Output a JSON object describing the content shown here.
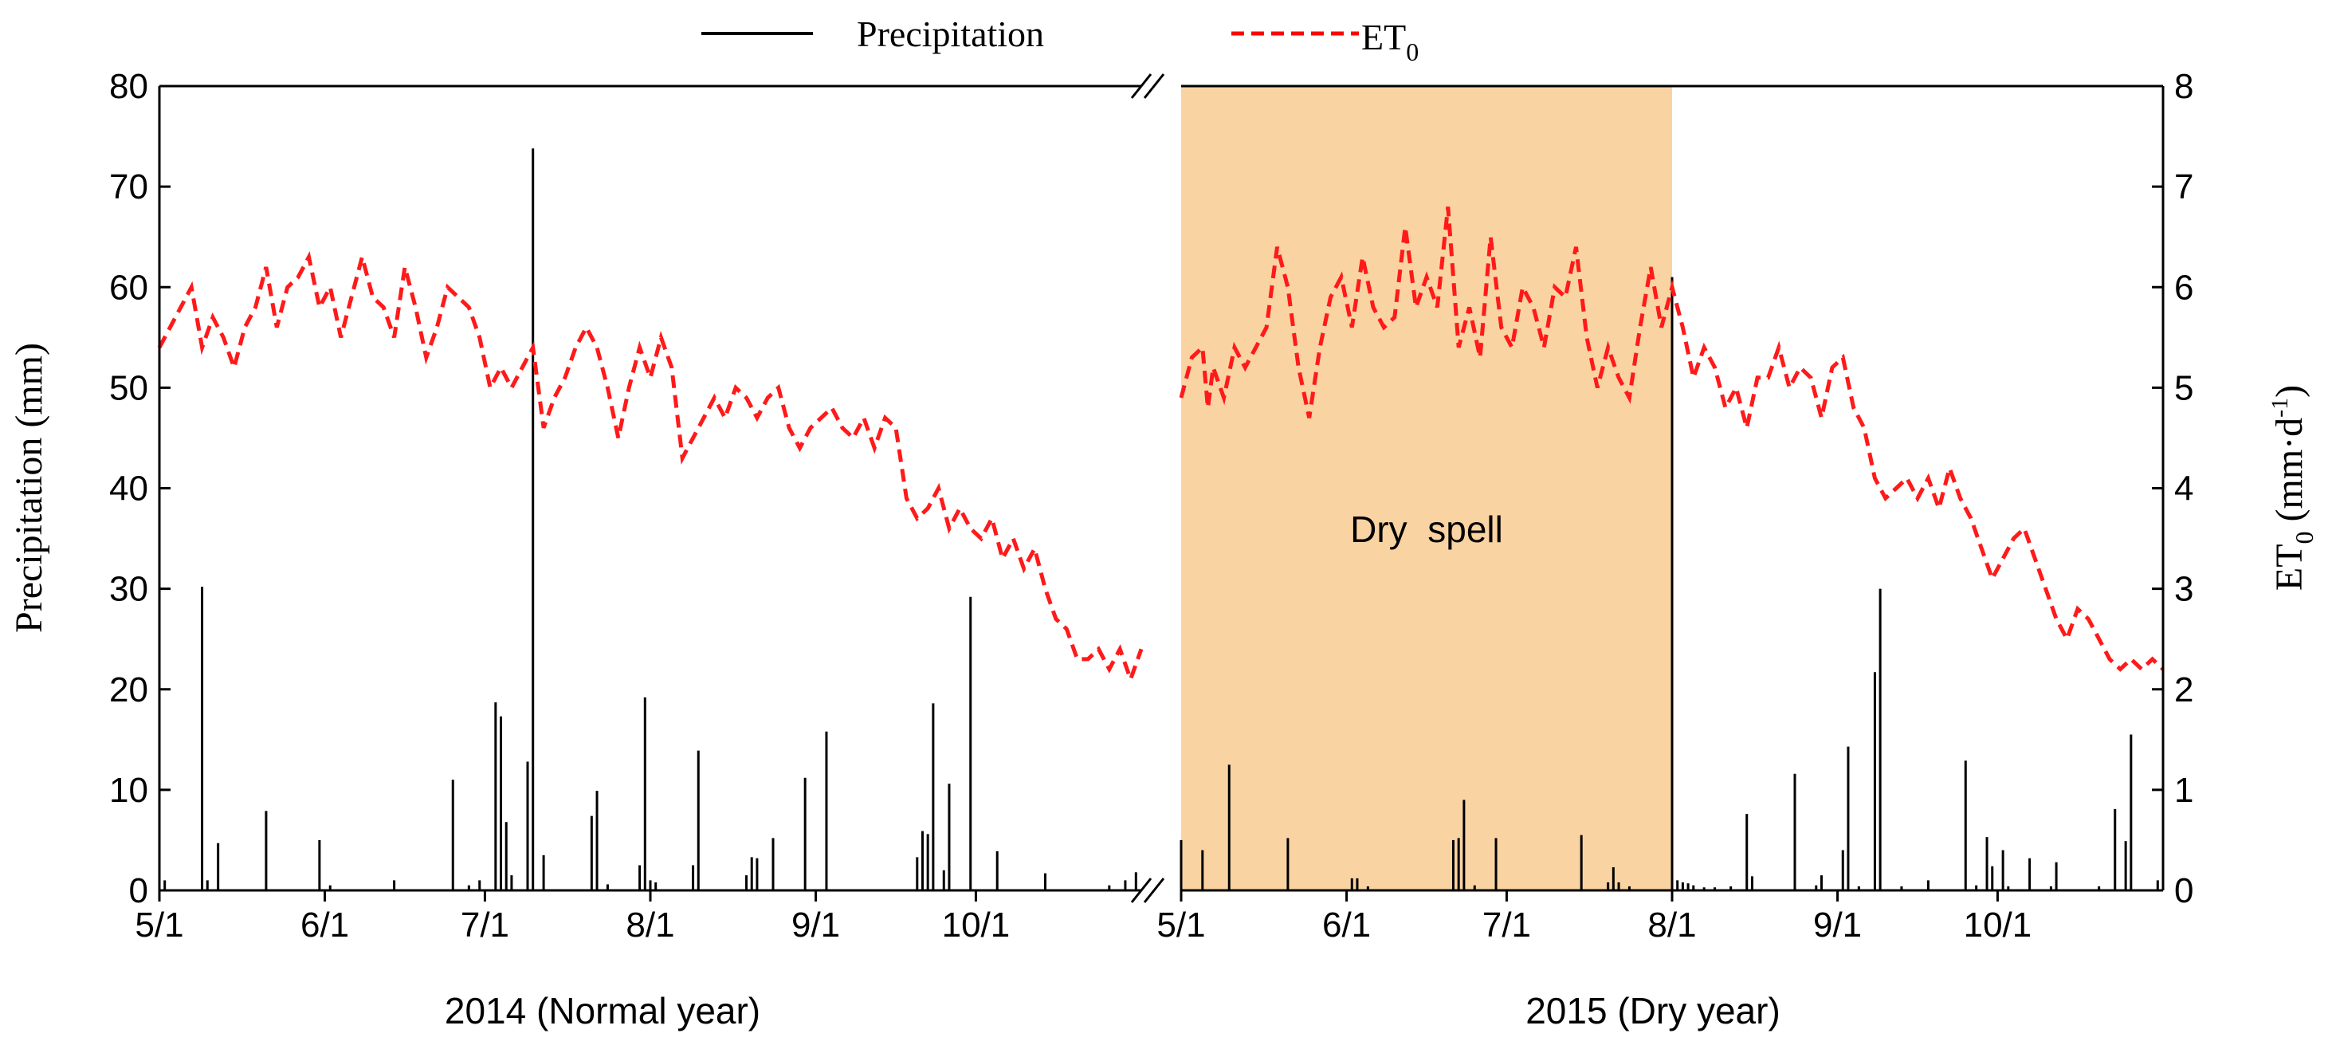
{
  "chart_data": {
    "type": "bar+line",
    "title": "",
    "legend": {
      "position": "top",
      "entries": [
        {
          "name": "Precipitation",
          "style": "solid",
          "color": "#000000"
        },
        {
          "name": "ET",
          "sub": "0",
          "style": "dashed",
          "color": "#ff0000"
        }
      ]
    },
    "y_left": {
      "label": "Precipitation (mm)",
      "min": 0,
      "max": 80,
      "ticks": [
        "0",
        "10",
        "20",
        "30",
        "40",
        "50",
        "60",
        "70",
        "80"
      ]
    },
    "y_right": {
      "label_main": "ET",
      "label_sub": "0",
      "label_unit_open": " (mm",
      "label_dot": "·",
      "label_unit_d": "d",
      "label_unit_sup": "-1",
      "label_unit_close": ")",
      "min": 0,
      "max": 8,
      "ticks": [
        "0",
        "1",
        "2",
        "3",
        "4",
        "5",
        "6",
        "7",
        "8"
      ]
    },
    "x_axis": {
      "day_range_per_panel": [
        0,
        184
      ],
      "break_marker": "//"
    },
    "panels": [
      {
        "year_label": "2014 (Normal year)",
        "ticks": [
          {
            "day": 0,
            "label": "5/1"
          },
          {
            "day": 31,
            "label": "6/1"
          },
          {
            "day": 61,
            "label": "7/1"
          },
          {
            "day": 92,
            "label": "8/1"
          },
          {
            "day": 123,
            "label": "9/1"
          },
          {
            "day": 153,
            "label": "10/1"
          }
        ],
        "precipitation": [
          [
            1,
            1
          ],
          [
            8,
            30.2
          ],
          [
            9,
            1
          ],
          [
            11,
            4.7
          ],
          [
            20,
            7.9
          ],
          [
            30,
            5
          ],
          [
            32,
            0.5
          ],
          [
            44,
            1
          ],
          [
            55,
            11
          ],
          [
            58,
            0.5
          ],
          [
            60,
            1
          ],
          [
            63,
            18.7
          ],
          [
            64,
            17.3
          ],
          [
            65,
            6.8
          ],
          [
            66,
            1.5
          ],
          [
            69,
            12.8
          ],
          [
            70,
            73.8
          ],
          [
            72,
            3.5
          ],
          [
            81,
            7.4
          ],
          [
            82,
            9.9
          ],
          [
            84,
            0.6
          ],
          [
            90,
            2.5
          ],
          [
            91,
            19.2
          ],
          [
            92,
            1
          ],
          [
            93,
            0.8
          ],
          [
            100,
            2.5
          ],
          [
            101,
            13.9
          ],
          [
            110,
            1.5
          ],
          [
            111,
            3.3
          ],
          [
            112,
            3.2
          ],
          [
            115,
            5.2
          ],
          [
            121,
            11.2
          ],
          [
            125,
            15.8
          ],
          [
            142,
            3.3
          ],
          [
            143,
            5.9
          ],
          [
            144,
            5.6
          ],
          [
            145,
            18.6
          ],
          [
            147,
            2
          ],
          [
            148,
            10.6
          ],
          [
            152,
            29.2
          ],
          [
            157,
            3.9
          ],
          [
            166,
            1.7
          ],
          [
            178,
            0.5
          ],
          [
            181,
            1
          ],
          [
            183,
            1.8
          ]
        ],
        "et0": [
          [
            0,
            5.4
          ],
          [
            2,
            5.6
          ],
          [
            4,
            5.8
          ],
          [
            6,
            6
          ],
          [
            8,
            5.4
          ],
          [
            10,
            5.7
          ],
          [
            12,
            5.5
          ],
          [
            14,
            5.2
          ],
          [
            16,
            5.6
          ],
          [
            18,
            5.8
          ],
          [
            20,
            6.2
          ],
          [
            22,
            5.6
          ],
          [
            24,
            6
          ],
          [
            26,
            6.1
          ],
          [
            28,
            6.3
          ],
          [
            30,
            5.8
          ],
          [
            32,
            6
          ],
          [
            34,
            5.5
          ],
          [
            36,
            5.9
          ],
          [
            38,
            6.3
          ],
          [
            40,
            5.9
          ],
          [
            42,
            5.8
          ],
          [
            44,
            5.5
          ],
          [
            46,
            6.2
          ],
          [
            48,
            5.8
          ],
          [
            50,
            5.3
          ],
          [
            52,
            5.6
          ],
          [
            54,
            6
          ],
          [
            56,
            5.9
          ],
          [
            58,
            5.8
          ],
          [
            60,
            5.5
          ],
          [
            62,
            5
          ],
          [
            64,
            5.2
          ],
          [
            66,
            5
          ],
          [
            68,
            5.2
          ],
          [
            70,
            5.4
          ],
          [
            72,
            4.6
          ],
          [
            74,
            4.9
          ],
          [
            76,
            5.1
          ],
          [
            78,
            5.4
          ],
          [
            80,
            5.6
          ],
          [
            82,
            5.4
          ],
          [
            84,
            5
          ],
          [
            86,
            4.5
          ],
          [
            88,
            5
          ],
          [
            90,
            5.4
          ],
          [
            92,
            5.1
          ],
          [
            94,
            5.5
          ],
          [
            96,
            5.2
          ],
          [
            98,
            4.3
          ],
          [
            100,
            4.5
          ],
          [
            102,
            4.7
          ],
          [
            104,
            4.9
          ],
          [
            106,
            4.7
          ],
          [
            108,
            5
          ],
          [
            110,
            4.9
          ],
          [
            112,
            4.7
          ],
          [
            114,
            4.9
          ],
          [
            116,
            5
          ],
          [
            118,
            4.6
          ],
          [
            120,
            4.4
          ],
          [
            122,
            4.6
          ],
          [
            124,
            4.7
          ],
          [
            126,
            4.8
          ],
          [
            128,
            4.6
          ],
          [
            130,
            4.5
          ],
          [
            132,
            4.7
          ],
          [
            134,
            4.4
          ],
          [
            136,
            4.7
          ],
          [
            138,
            4.6
          ],
          [
            140,
            3.9
          ],
          [
            142,
            3.7
          ],
          [
            144,
            3.8
          ],
          [
            146,
            4
          ],
          [
            148,
            3.6
          ],
          [
            150,
            3.8
          ],
          [
            152,
            3.6
          ],
          [
            154,
            3.5
          ],
          [
            156,
            3.7
          ],
          [
            158,
            3.3
          ],
          [
            160,
            3.5
          ],
          [
            162,
            3.2
          ],
          [
            164,
            3.4
          ],
          [
            166,
            3
          ],
          [
            168,
            2.7
          ],
          [
            170,
            2.6
          ],
          [
            172,
            2.3
          ],
          [
            174,
            2.3
          ],
          [
            176,
            2.4
          ],
          [
            178,
            2.2
          ],
          [
            180,
            2.4
          ],
          [
            182,
            2.1
          ],
          [
            184,
            2.4
          ]
        ]
      },
      {
        "year_label": "2015 (Dry year)",
        "ticks": [
          {
            "day": 0,
            "label": "5/1"
          },
          {
            "day": 31,
            "label": "6/1"
          },
          {
            "day": 61,
            "label": "7/1"
          },
          {
            "day": 92,
            "label": "8/1"
          },
          {
            "day": 123,
            "label": "9/1"
          },
          {
            "day": 153,
            "label": "10/1"
          }
        ],
        "shaded": {
          "from_day": 0,
          "to_day": 92,
          "label": "Dry  spell",
          "color": "#fad3a3"
        },
        "precipitation": [
          [
            0,
            5
          ],
          [
            4,
            4
          ],
          [
            9,
            12.5
          ],
          [
            20,
            5.2
          ],
          [
            32,
            1.2
          ],
          [
            33,
            1.2
          ],
          [
            35,
            0.4
          ],
          [
            51,
            5
          ],
          [
            52,
            5.2
          ],
          [
            53,
            9
          ],
          [
            55,
            0.5
          ],
          [
            59,
            5.2
          ],
          [
            75,
            5.5
          ],
          [
            80,
            0.8
          ],
          [
            81,
            2.3
          ],
          [
            82,
            0.8
          ],
          [
            84,
            0.4
          ],
          [
            92,
            61
          ],
          [
            93,
            1
          ],
          [
            94,
            0.8
          ],
          [
            95,
            0.7
          ],
          [
            96,
            0.5
          ],
          [
            98,
            0.3
          ],
          [
            100,
            0.3
          ],
          [
            103,
            0.4
          ],
          [
            106,
            7.6
          ],
          [
            107,
            1.4
          ],
          [
            115,
            11.6
          ],
          [
            119,
            0.5
          ],
          [
            120,
            1.5
          ],
          [
            124,
            4
          ],
          [
            125,
            14.3
          ],
          [
            127,
            0.4
          ],
          [
            130,
            21.7
          ],
          [
            131,
            30
          ],
          [
            135,
            0.4
          ],
          [
            140,
            1
          ],
          [
            147,
            12.9
          ],
          [
            149,
            0.5
          ],
          [
            151,
            5.3
          ],
          [
            152,
            2.4
          ],
          [
            154,
            4
          ],
          [
            155,
            0.4
          ],
          [
            159,
            3.2
          ],
          [
            163,
            0.4
          ],
          [
            164,
            2.8
          ],
          [
            172,
            0.4
          ],
          [
            175,
            8.1
          ],
          [
            177,
            4.9
          ],
          [
            178,
            15.5
          ],
          [
            183,
            1
          ]
        ],
        "et0": [
          [
            0,
            4.9
          ],
          [
            2,
            5.3
          ],
          [
            4,
            5.4
          ],
          [
            5,
            4.8
          ],
          [
            6,
            5.2
          ],
          [
            8,
            4.9
          ],
          [
            10,
            5.4
          ],
          [
            12,
            5.2
          ],
          [
            14,
            5.4
          ],
          [
            16,
            5.6
          ],
          [
            18,
            6.4
          ],
          [
            20,
            6
          ],
          [
            22,
            5.2
          ],
          [
            24,
            4.7
          ],
          [
            26,
            5.4
          ],
          [
            28,
            5.9
          ],
          [
            30,
            6.1
          ],
          [
            32,
            5.6
          ],
          [
            34,
            6.3
          ],
          [
            36,
            5.8
          ],
          [
            38,
            5.6
          ],
          [
            40,
            5.7
          ],
          [
            42,
            6.6
          ],
          [
            44,
            5.8
          ],
          [
            46,
            6.1
          ],
          [
            48,
            5.8
          ],
          [
            50,
            6.8
          ],
          [
            52,
            5.4
          ],
          [
            54,
            5.8
          ],
          [
            56,
            5.3
          ],
          [
            58,
            6.5
          ],
          [
            60,
            5.6
          ],
          [
            62,
            5.4
          ],
          [
            64,
            6
          ],
          [
            66,
            5.8
          ],
          [
            68,
            5.4
          ],
          [
            70,
            6
          ],
          [
            72,
            5.9
          ],
          [
            74,
            6.4
          ],
          [
            76,
            5.5
          ],
          [
            78,
            5
          ],
          [
            80,
            5.4
          ],
          [
            82,
            5.1
          ],
          [
            84,
            4.9
          ],
          [
            86,
            5.6
          ],
          [
            88,
            6.2
          ],
          [
            90,
            5.6
          ],
          [
            92,
            6
          ],
          [
            94,
            5.6
          ],
          [
            96,
            5.1
          ],
          [
            98,
            5.4
          ],
          [
            100,
            5.2
          ],
          [
            102,
            4.8
          ],
          [
            104,
            5
          ],
          [
            106,
            4.6
          ],
          [
            108,
            5.1
          ],
          [
            110,
            5.1
          ],
          [
            112,
            5.4
          ],
          [
            114,
            5
          ],
          [
            116,
            5.2
          ],
          [
            118,
            5.1
          ],
          [
            120,
            4.7
          ],
          [
            122,
            5.2
          ],
          [
            124,
            5.3
          ],
          [
            126,
            4.8
          ],
          [
            128,
            4.6
          ],
          [
            130,
            4.1
          ],
          [
            132,
            3.9
          ],
          [
            134,
            4
          ],
          [
            136,
            4.1
          ],
          [
            138,
            3.9
          ],
          [
            140,
            4.1
          ],
          [
            142,
            3.8
          ],
          [
            144,
            4.2
          ],
          [
            146,
            3.9
          ],
          [
            148,
            3.7
          ],
          [
            150,
            3.4
          ],
          [
            152,
            3.1
          ],
          [
            154,
            3.3
          ],
          [
            156,
            3.5
          ],
          [
            158,
            3.6
          ],
          [
            160,
            3.3
          ],
          [
            162,
            3
          ],
          [
            164,
            2.7
          ],
          [
            166,
            2.5
          ],
          [
            168,
            2.8
          ],
          [
            170,
            2.7
          ],
          [
            172,
            2.5
          ],
          [
            174,
            2.3
          ],
          [
            176,
            2.2
          ],
          [
            178,
            2.3
          ],
          [
            180,
            2.2
          ],
          [
            182,
            2.3
          ],
          [
            184,
            2.2
          ]
        ]
      }
    ]
  }
}
